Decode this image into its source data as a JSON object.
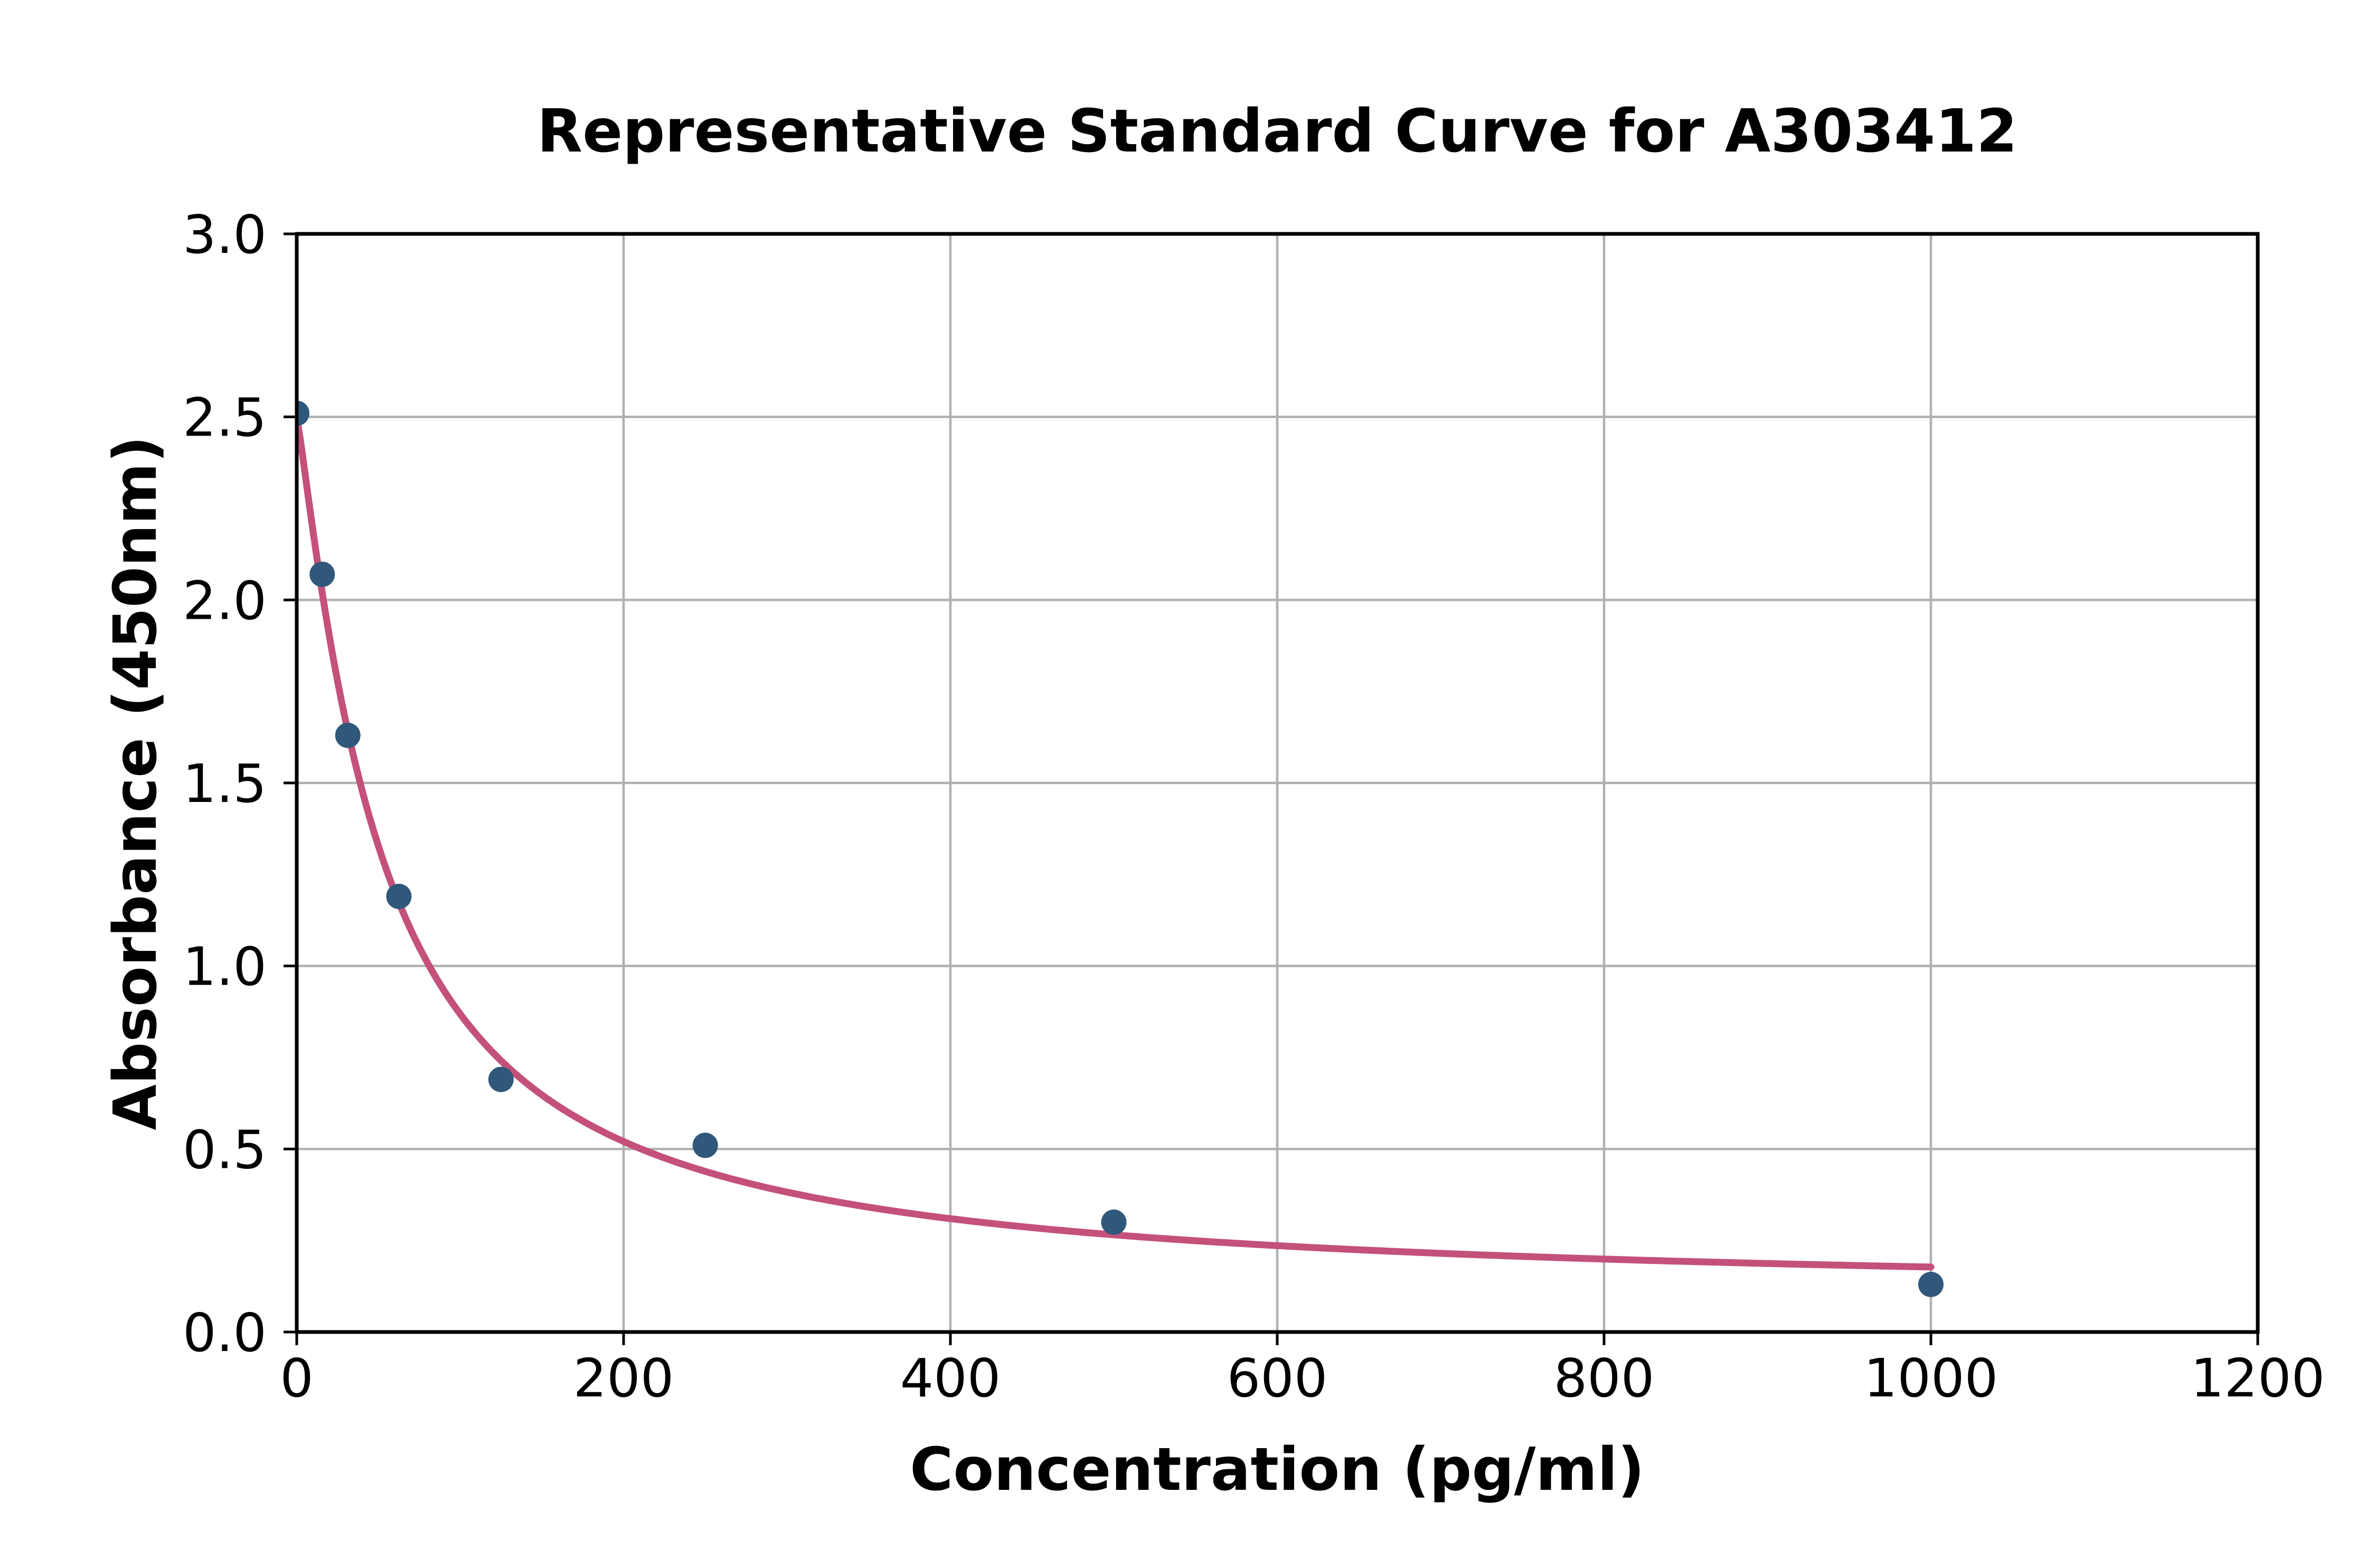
{
  "chart_data": {
    "type": "scatter",
    "title": "Representative Standard Curve for A303412",
    "xlabel": "Concentration (pg/ml)",
    "ylabel": "Absorbance (450nm)",
    "xlim": [
      0,
      1200
    ],
    "ylim": [
      0.0,
      3.0
    ],
    "x_ticks": [
      0,
      200,
      400,
      600,
      800,
      1000,
      1200
    ],
    "x_tick_labels": [
      "0",
      "200",
      "400",
      "600",
      "800",
      "1000",
      "1200"
    ],
    "y_ticks": [
      0.0,
      0.5,
      1.0,
      1.5,
      2.0,
      2.5,
      3.0
    ],
    "y_tick_labels": [
      "0.0",
      "0.5",
      "1.0",
      "1.5",
      "2.0",
      "2.5",
      "3.0"
    ],
    "grid": true,
    "legend_position": "none",
    "series": [
      {
        "name": "standard-data-points",
        "type": "scatter",
        "points": [
          {
            "x": 0,
            "y": 2.51
          },
          {
            "x": 15.6,
            "y": 2.07
          },
          {
            "x": 31.25,
            "y": 1.63
          },
          {
            "x": 62.5,
            "y": 1.19
          },
          {
            "x": 125,
            "y": 0.69
          },
          {
            "x": 250,
            "y": 0.51
          },
          {
            "x": 500,
            "y": 0.3
          },
          {
            "x": 1000,
            "y": 0.13
          }
        ]
      },
      {
        "name": "fitted-standard-curve",
        "type": "line",
        "fit": {
          "model": "4PL",
          "a": 2.5,
          "b": 1.15,
          "c": 52,
          "d": 0.1
        },
        "x_range": [
          0,
          1000
        ]
      }
    ],
    "colors": {
      "curve": "#c4517b",
      "marker": "#2f587a",
      "grid": "#b0b0b0",
      "axis": "#000000",
      "text": "#000000",
      "background": "#ffffff"
    }
  }
}
